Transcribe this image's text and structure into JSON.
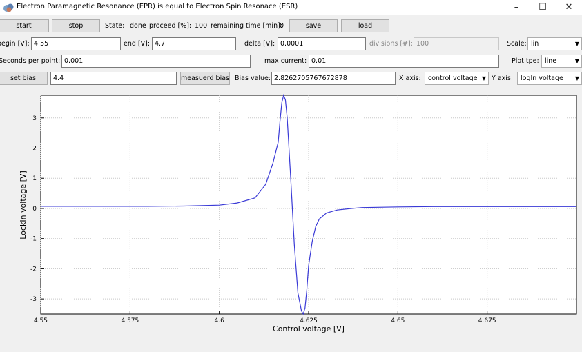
{
  "window": {
    "title": "Electron Paramagnetic Resonance (EPR) is equal to Electron Spin Resonace (ESR)",
    "minimize": "–",
    "maximize": "☐",
    "close": "✕"
  },
  "toolbar": {
    "start_label": "start",
    "stop_label": "stop",
    "state_label": "State:",
    "state_value": "done",
    "proceed_label": "proceed [%]:",
    "proceed_value": "100",
    "remaining_label": "remaining time [min]:",
    "remaining_value": "0",
    "save_label": "save",
    "load_label": "load"
  },
  "params": {
    "begin_label": "begin [V]:",
    "begin_value": "4.55",
    "end_label": "end [V]:",
    "end_value": "4.7",
    "delta_label": "delta [V]:",
    "delta_value": "0.0001",
    "divisions_label": "divisions [#]:",
    "divisions_value": "100",
    "scale_label": "Scale:",
    "scale_value": "lin",
    "seconds_label": "Seconds per point:",
    "seconds_value": "0.001",
    "maxcurrent_label": "max current:",
    "maxcurrent_value": "0.01",
    "plottype_label": "Plot tpe:",
    "plottype_value": "line"
  },
  "bias": {
    "set_bias_label": "set bias",
    "bias_input_value": "4.4",
    "measured_bias_label": "measuerd bias",
    "bias_value_label": "Bias value:",
    "bias_value": "2.8262705767672878",
    "xaxis_label": "X axis:",
    "xaxis_value": "control voltage",
    "yaxis_label": "Y axis:",
    "yaxis_value": "logIn voltage"
  },
  "chart_data": {
    "type": "line",
    "title": "",
    "xlabel": "Control voltage [V]",
    "ylabel": "LockIn voltage [V]",
    "xlim": [
      4.55,
      4.7
    ],
    "ylim": [
      -3.5,
      3.75
    ],
    "grid": true,
    "x_ticks": [
      "4.55",
      "4.575",
      "4.6",
      "4.625",
      "4.65",
      "4.675"
    ],
    "y_ticks": [
      "3",
      "2",
      "1",
      "0",
      "-1",
      "-2",
      "-3"
    ],
    "line_color": "#3a3ad6",
    "series": [
      {
        "x": [
          4.55,
          4.56,
          4.57,
          4.58,
          4.59,
          4.6,
          4.605,
          4.61,
          4.613,
          4.615,
          4.6165,
          4.617,
          4.6175,
          4.618,
          4.6185,
          4.619,
          4.62,
          4.621,
          4.622,
          4.623,
          4.6235,
          4.624,
          4.6245,
          4.625,
          4.626,
          4.627,
          4.628,
          4.63,
          4.633,
          4.637,
          4.64,
          4.65,
          4.66,
          4.67,
          4.68,
          4.69,
          4.7
        ],
        "y": [
          0.07,
          0.07,
          0.07,
          0.07,
          0.08,
          0.11,
          0.18,
          0.35,
          0.8,
          1.5,
          2.2,
          2.9,
          3.5,
          3.75,
          3.6,
          3.0,
          1.0,
          -1.2,
          -2.8,
          -3.4,
          -3.5,
          -3.3,
          -2.7,
          -1.9,
          -1.1,
          -0.6,
          -0.35,
          -0.15,
          -0.05,
          0.0,
          0.03,
          0.05,
          0.06,
          0.06,
          0.06,
          0.06,
          0.06
        ]
      }
    ]
  }
}
